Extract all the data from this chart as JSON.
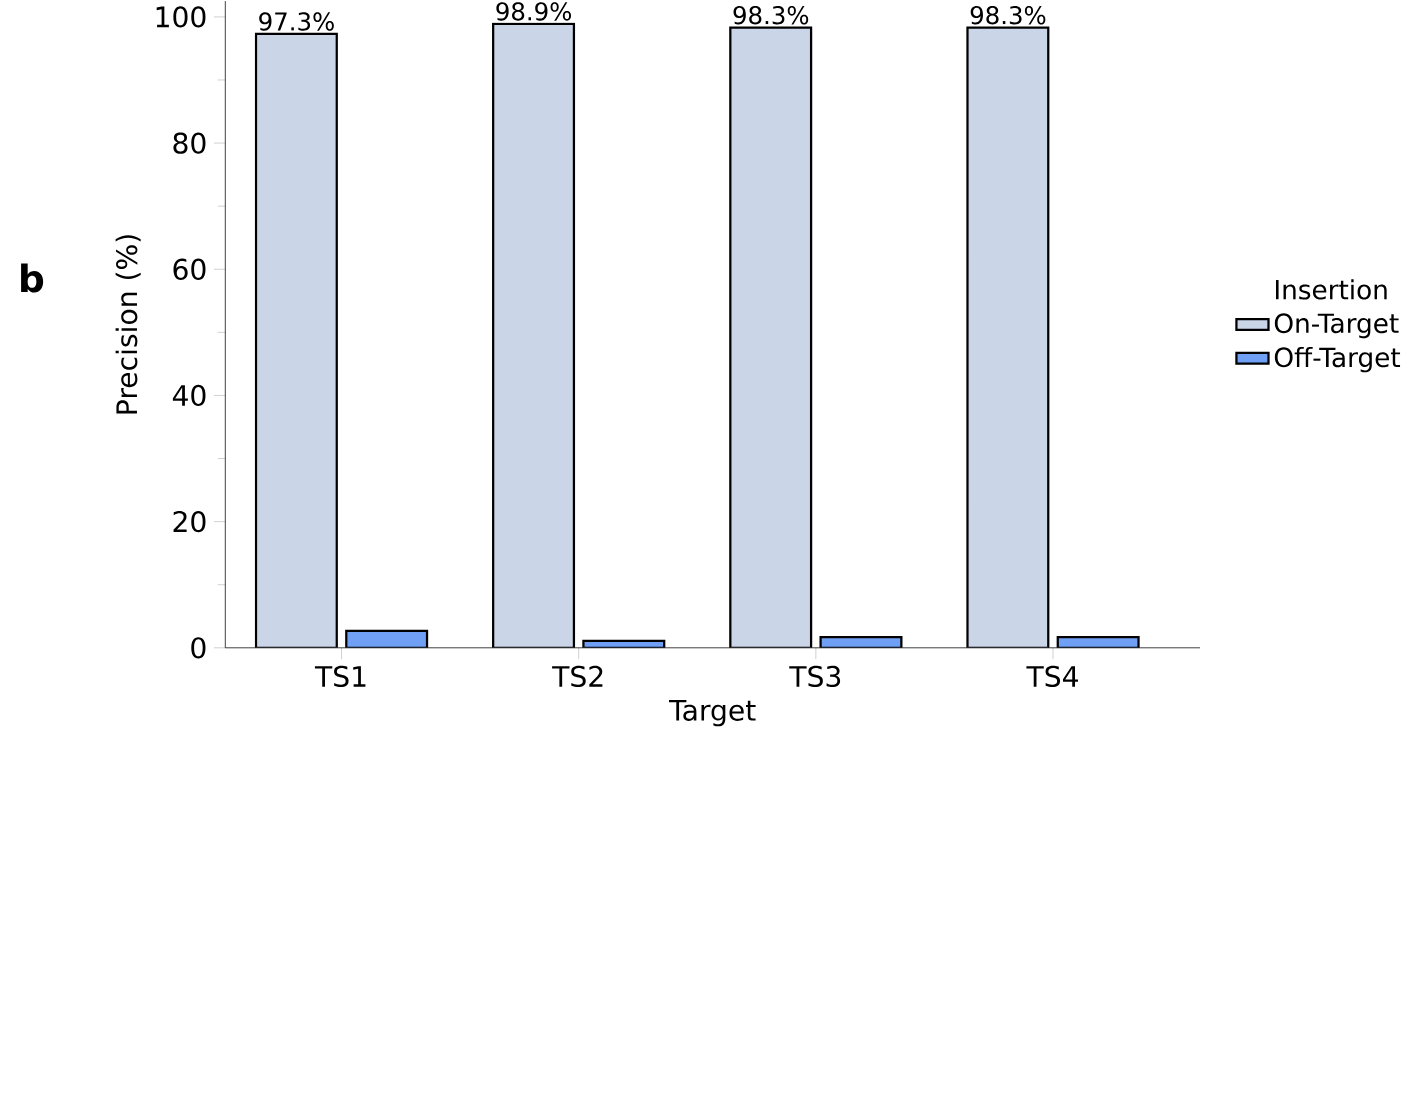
{
  "chart_data": {
    "type": "bar",
    "annotations": [
      "b"
    ],
    "xlabel": "Target",
    "ylabel": "Precision (%)",
    "legend_title": "Insertion",
    "legend": "right",
    "categories": [
      "TS1",
      "TS2",
      "TS3",
      "TS4"
    ],
    "series": [
      {
        "name": "On-Target",
        "color": "#cbd5e8",
        "values": [
          97.3,
          98.9,
          98.3,
          98.3
        ],
        "value_labels": [
          "97.3%",
          "98.9%",
          "98.3%",
          "98.3%"
        ]
      },
      {
        "name": "Off-Target",
        "color": "#6fa0f5",
        "values": [
          2.7,
          1.1,
          1.7,
          1.7
        ]
      }
    ],
    "ylim": [
      0,
      102.5
    ],
    "yticks": [
      0,
      20,
      40,
      60,
      80,
      100
    ]
  }
}
